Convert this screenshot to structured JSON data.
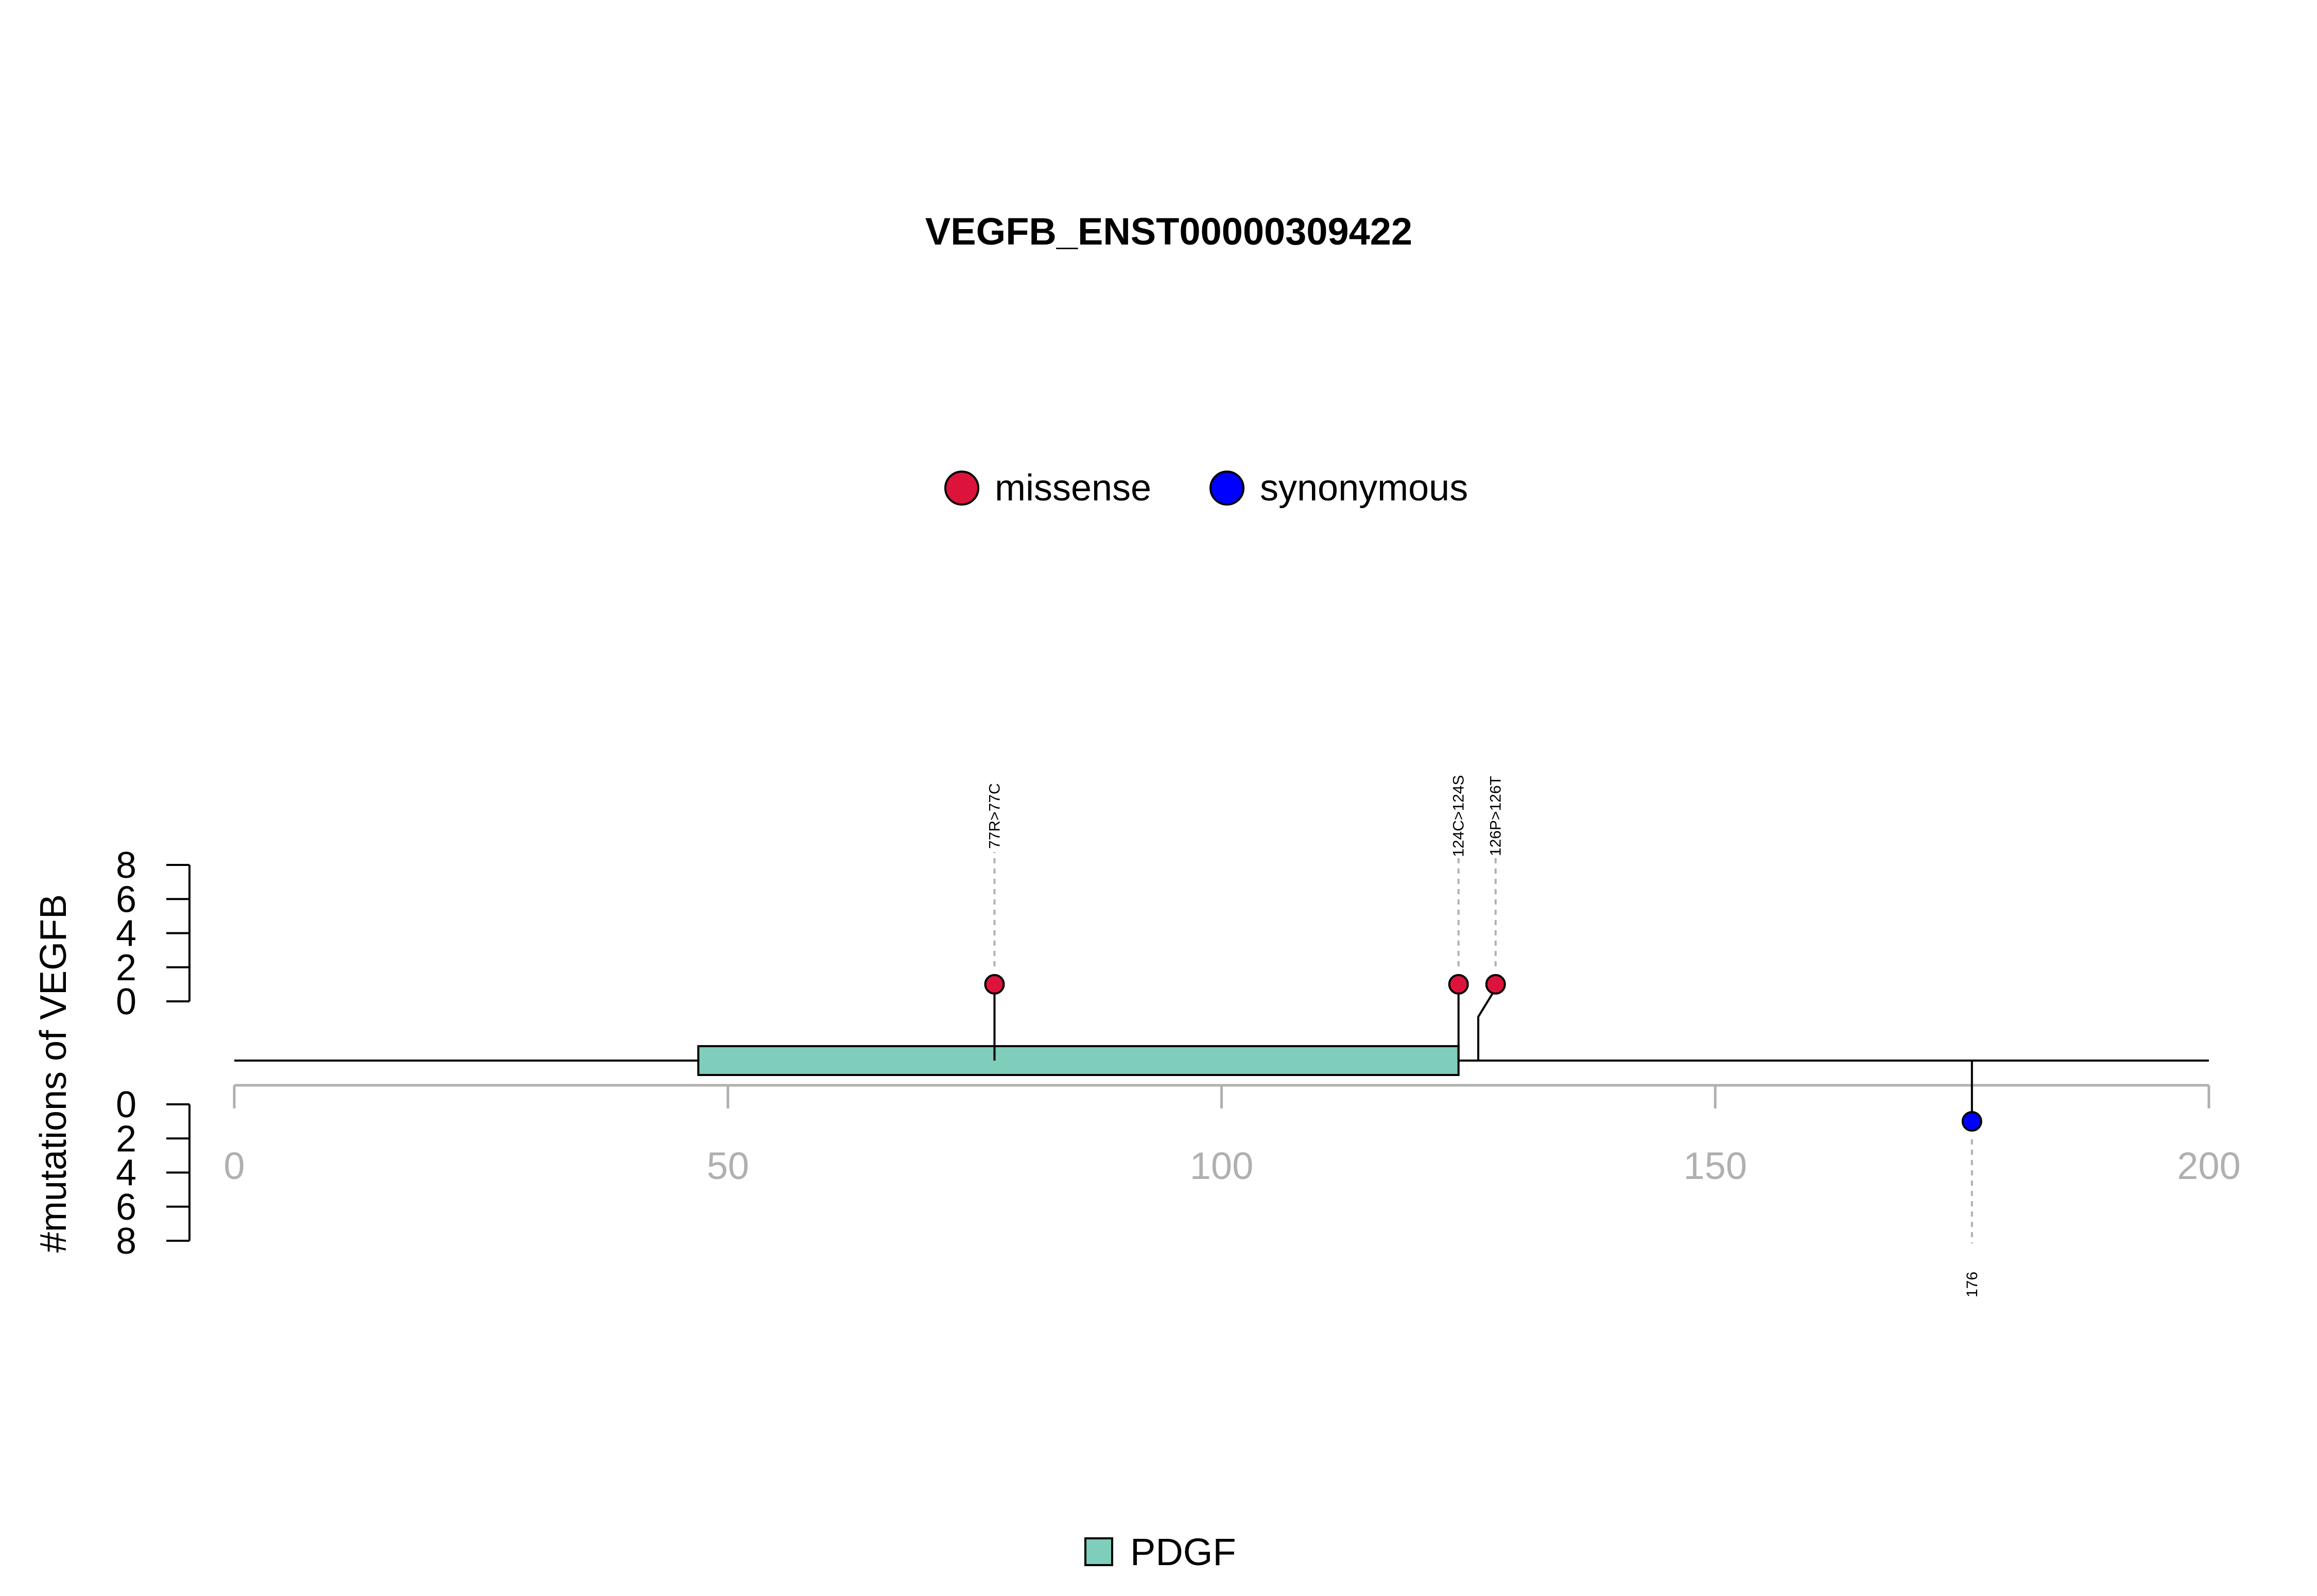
{
  "chart_data": {
    "type": "lollipop",
    "title": "VEGFB_ENST00000309422",
    "ylabel": "#mutations of VEGFB",
    "xlim": [
      0,
      200
    ],
    "x_ticks": [
      0,
      50,
      100,
      150,
      200
    ],
    "y_ticks": [
      0,
      2,
      4,
      6,
      8
    ],
    "protein_length": 200,
    "mutation_legend": [
      {
        "name": "missense",
        "color": "#DC143C"
      },
      {
        "name": "synonymous",
        "color": "#0000FF"
      }
    ],
    "domain_legend": [
      {
        "name": "PDGF",
        "color": "#7FCDBB"
      }
    ],
    "domains": [
      {
        "name": "PDGF",
        "start": 47,
        "end": 124,
        "color": "#7FCDBB"
      }
    ],
    "mutations": [
      {
        "position": 77,
        "label": "77R>77C",
        "type": "missense",
        "count": 1,
        "track": "top"
      },
      {
        "position": 124,
        "label": "124C>124S",
        "type": "missense",
        "count": 1,
        "track": "top"
      },
      {
        "position": 126,
        "label": "126P>126T",
        "type": "missense",
        "count": 1,
        "track": "top"
      },
      {
        "position": 176,
        "label": "176",
        "type": "synonymous",
        "count": 1,
        "track": "bottom"
      }
    ],
    "colors": {
      "missense": "#DC143C",
      "synonymous": "#0000FF",
      "axis_gray": "#B0B0B0",
      "domain": "#7FCDBB"
    }
  }
}
